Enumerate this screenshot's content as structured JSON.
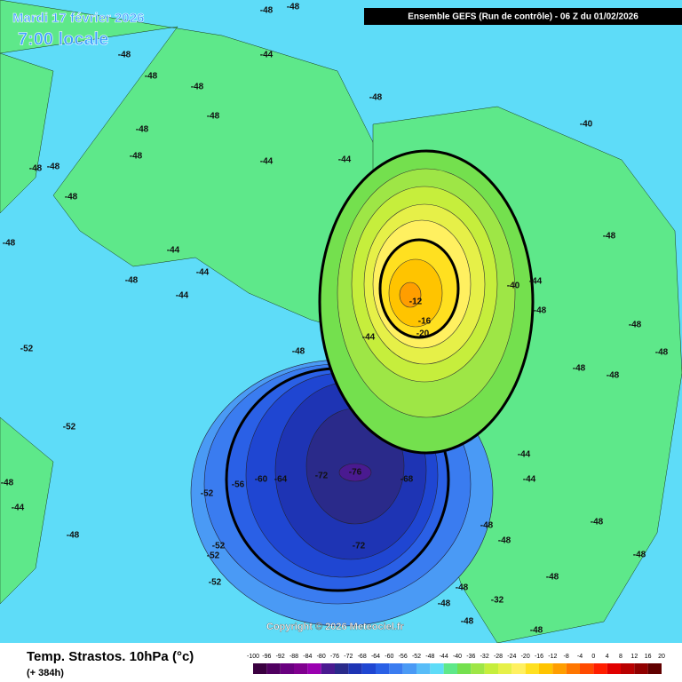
{
  "header": {
    "title": "Mardi 17 février 2026",
    "time": "7:00 locale",
    "run": "Ensemble GEFS  (Run de contrôle)  - 06 Z du 01/02/2026"
  },
  "footer": {
    "parameter": "Temp. Strastos. 10hPa (°c)",
    "lead": "(+ 384h)",
    "copyright": "Copyright © 2026 Meteociel.fr"
  },
  "legend": {
    "ticks": [
      -100,
      -96,
      -92,
      -88,
      -84,
      -80,
      -76,
      -72,
      -68,
      -64,
      -60,
      -56,
      -52,
      -48,
      -44,
      -40,
      -36,
      -32,
      -28,
      -24,
      -20,
      -16,
      -12,
      -8,
      -4,
      0,
      4,
      8,
      12,
      16,
      20
    ],
    "colors": [
      "#3a0040",
      "#500060",
      "#6a0080",
      "#80008f",
      "#9a00b0",
      "#4a1a90",
      "#2a2a8a",
      "#1e34b4",
      "#1f46d2",
      "#2a60e6",
      "#3a7cf0",
      "#4a9af5",
      "#58bdf8",
      "#5edcf8",
      "#5ee88a",
      "#74e04e",
      "#9ee646",
      "#c6ee3c",
      "#e6f048",
      "#fff060",
      "#ffe020",
      "#ffc400",
      "#ff9e00",
      "#ff7600",
      "#ff4a00",
      "#ff1e00",
      "#e00000",
      "#b80000",
      "#900000",
      "#600000"
    ]
  },
  "contour_labels": [
    -48,
    -48,
    -44,
    -48,
    -48,
    -48,
    -48,
    -48,
    -48,
    -48,
    -48,
    -44,
    -48,
    -44,
    -48,
    -44,
    -44,
    -48,
    -48,
    -44,
    -48,
    -52,
    -52,
    -52,
    -56,
    -60,
    -64,
    -72,
    -76,
    -68,
    -72,
    -52,
    -52,
    -52,
    -48,
    -40,
    -44,
    -44,
    -48,
    -48,
    -44,
    -48,
    -48,
    -48,
    -32,
    -40,
    -12,
    -16,
    -20,
    -44,
    -48,
    -48,
    -48,
    -48,
    -48,
    -48,
    -44,
    -48,
    -48,
    -48,
    -48,
    -48
  ]
}
